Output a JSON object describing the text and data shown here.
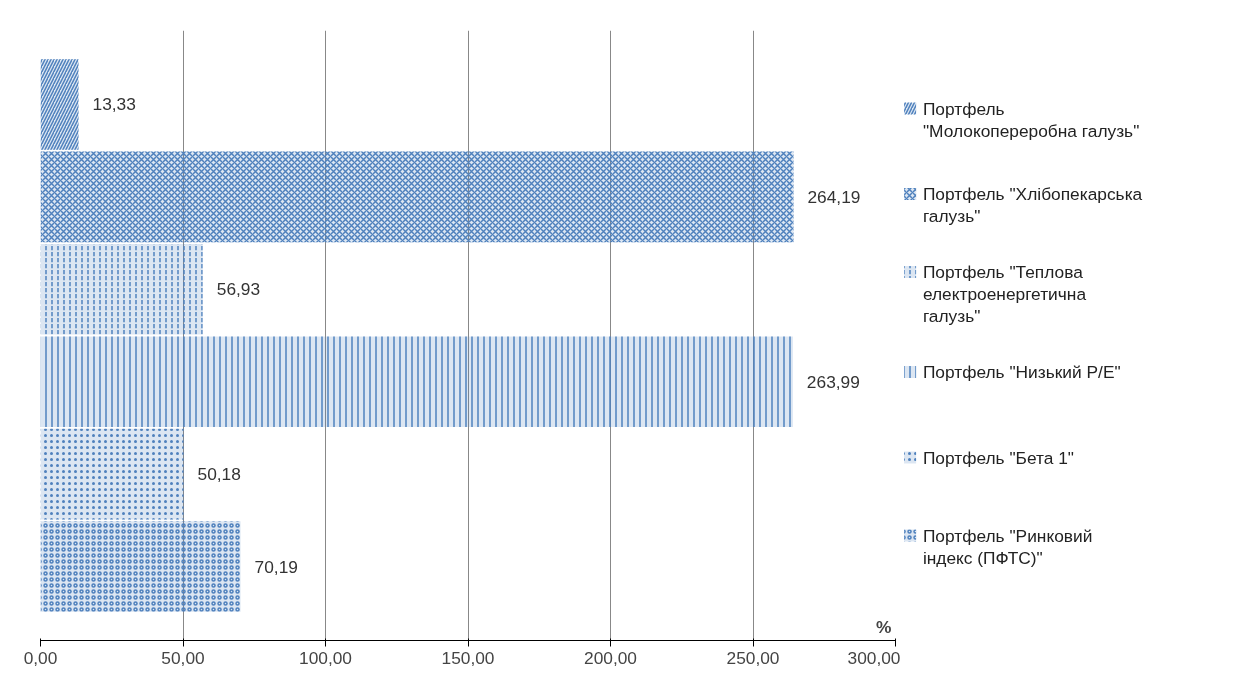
{
  "chart_data": {
    "type": "bar",
    "orientation": "horizontal",
    "categories": [
      null
    ],
    "series": [
      {
        "name": "Портфель \"Молокопереробна галузь\"",
        "color": "#4f81bd",
        "values": [
          13.33
        ],
        "value_labels": [
          "13,33"
        ]
      },
      {
        "name": "Портфель \"Хлібопекарська галузь\"",
        "color": "#4f81bd",
        "values": [
          264.19
        ],
        "value_labels": [
          "264,19"
        ]
      },
      {
        "name": "Портфель \"Теплова електроенергетична галузь\"",
        "color": "#4f81bd",
        "values": [
          56.93
        ],
        "value_labels": [
          "56,93"
        ]
      },
      {
        "name": "Портфель \"Низький P/E\"",
        "color": "#4f81bd",
        "values": [
          263.99
        ],
        "value_labels": [
          "263,99"
        ]
      },
      {
        "name": "Портфель \"Бета 1\"",
        "color": "#4f81bd",
        "values": [
          50.18
        ],
        "value_labels": [
          "50,18"
        ]
      },
      {
        "name": "Портфель \"Ринковий індекс (ПФТС)\"",
        "color": "#4f81bd",
        "values": [
          70.19
        ],
        "value_labels": [
          "70,19"
        ]
      }
    ],
    "xlabel": "%",
    "xlim": [
      0,
      300
    ],
    "xticks": [
      {
        "value": 0,
        "label": "0,00"
      },
      {
        "value": 50,
        "label": "50,00"
      },
      {
        "value": 100,
        "label": "100,00"
      },
      {
        "value": 150,
        "label": "150,00"
      },
      {
        "value": 200,
        "label": "200,00"
      },
      {
        "value": 250,
        "label": "250,00"
      },
      {
        "value": 300,
        "label": "300,00"
      }
    ],
    "grid": "x",
    "legend": "right"
  }
}
